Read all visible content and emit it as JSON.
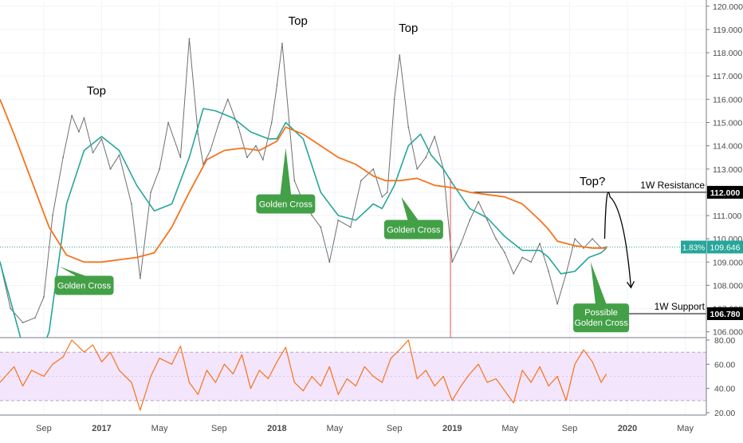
{
  "chart_data": [
    {
      "type": "line",
      "panel": "price",
      "ylim": [
        105.75,
        120.2
      ],
      "y_ticks": [
        106,
        107,
        108,
        109,
        110,
        111,
        112,
        113,
        114,
        115,
        116,
        117,
        118,
        119,
        120
      ],
      "y_tick_labels": [
        "106.000",
        "107.000",
        "108.000",
        "109.000",
        "110.000",
        "111.000",
        "112.000",
        "113.000",
        "114.000",
        "115.000",
        "116.000",
        "117.000",
        "118.000",
        "119.000",
        "120.000"
      ],
      "x_ticks": [
        {
          "label": "Sep",
          "t": 2016.67
        },
        {
          "label": "2017",
          "t": 2017.0
        },
        {
          "label": "May",
          "t": 2017.33
        },
        {
          "label": "Sep",
          "t": 2017.67
        },
        {
          "label": "2018",
          "t": 2018.0
        },
        {
          "label": "May",
          "t": 2018.33
        },
        {
          "label": "Sep",
          "t": 2018.67
        },
        {
          "label": "2019",
          "t": 2019.0
        },
        {
          "label": "May",
          "t": 2019.33
        },
        {
          "label": "Sep",
          "t": 2019.67
        },
        {
          "label": "2020",
          "t": 2020.0
        },
        {
          "label": "May",
          "t": 2020.33
        }
      ],
      "series": [
        {
          "role": "price",
          "color": "#6f6f6f",
          "t": [
            2016.42,
            2016.48,
            2016.55,
            2016.62,
            2016.67,
            2016.72,
            2016.78,
            2016.83,
            2016.87,
            2016.9,
            2016.95,
            2017.0,
            2017.05,
            2017.1,
            2017.17,
            2017.22,
            2017.28,
            2017.33,
            2017.38,
            2017.45,
            2017.5,
            2017.55,
            2017.58,
            2017.62,
            2017.67,
            2017.72,
            2017.78,
            2017.83,
            2017.88,
            2017.92,
            2017.97,
            2018.0,
            2018.03,
            2018.07,
            2018.1,
            2018.15,
            2018.2,
            2018.25,
            2018.3,
            2018.35,
            2018.42,
            2018.48,
            2018.55,
            2018.6,
            2018.63,
            2018.67,
            2018.7,
            2018.75,
            2018.8,
            2018.85,
            2018.9,
            2018.95,
            2019.0,
            2019.05,
            2019.1,
            2019.15,
            2019.2,
            2019.25,
            2019.3,
            2019.35,
            2019.4,
            2019.45,
            2019.5,
            2019.55,
            2019.6,
            2019.65,
            2019.7,
            2019.75,
            2019.8,
            2019.85,
            2019.88
          ],
          "values": [
            109.0,
            107.0,
            106.4,
            106.6,
            107.5,
            111.0,
            113.5,
            115.3,
            114.6,
            115.2,
            113.7,
            114.3,
            113.0,
            113.6,
            111.5,
            108.3,
            112.0,
            113.0,
            115.0,
            113.5,
            118.6,
            114.5,
            113.2,
            113.8,
            115.0,
            116.0,
            114.8,
            113.5,
            114.0,
            113.4,
            115.0,
            116.6,
            118.4,
            115.0,
            112.5,
            111.6,
            111.0,
            110.5,
            109.0,
            110.8,
            110.5,
            112.5,
            113.0,
            111.8,
            112.0,
            116.0,
            117.9,
            114.8,
            113.0,
            113.5,
            114.4,
            113.0,
            109.0,
            109.8,
            110.8,
            111.6,
            110.8,
            110.0,
            109.4,
            108.5,
            109.2,
            109.0,
            109.8,
            108.6,
            107.2,
            108.5,
            110.0,
            109.6,
            110.0,
            109.6,
            109.65
          ]
        },
        {
          "role": "fast moving average",
          "color": "#26a69a",
          "t": [
            2016.42,
            2016.6,
            2016.7,
            2016.8,
            2016.9,
            2017.0,
            2017.1,
            2017.2,
            2017.3,
            2017.4,
            2017.5,
            2017.58,
            2017.65,
            2017.75,
            2017.85,
            2017.95,
            2018.0,
            2018.05,
            2018.15,
            2018.25,
            2018.35,
            2018.45,
            2018.55,
            2018.6,
            2018.67,
            2018.75,
            2018.82,
            2018.88,
            2018.95,
            2019.0,
            2019.1,
            2019.2,
            2019.3,
            2019.4,
            2019.5,
            2019.55,
            2019.62,
            2019.7,
            2019.78,
            2019.85,
            2019.88
          ],
          "values": [
            109.0,
            104.0,
            106.0,
            111.5,
            113.8,
            114.4,
            113.8,
            112.3,
            111.2,
            111.5,
            113.5,
            115.6,
            115.5,
            115.2,
            114.6,
            114.3,
            114.3,
            115.0,
            114.3,
            112.0,
            111.0,
            110.8,
            111.5,
            111.3,
            112.3,
            114.0,
            114.5,
            113.6,
            113.0,
            112.4,
            111.3,
            110.9,
            110.1,
            109.5,
            109.5,
            109.2,
            108.5,
            108.6,
            109.2,
            109.4,
            109.6
          ]
        },
        {
          "role": "slow moving average",
          "color": "#f5731d",
          "t": [
            2016.42,
            2016.5,
            2016.6,
            2016.7,
            2016.8,
            2016.9,
            2017.0,
            2017.1,
            2017.2,
            2017.3,
            2017.4,
            2017.5,
            2017.6,
            2017.7,
            2017.8,
            2017.9,
            2018.0,
            2018.05,
            2018.15,
            2018.25,
            2018.35,
            2018.45,
            2018.55,
            2018.62,
            2018.7,
            2018.8,
            2018.9,
            2019.0,
            2019.1,
            2019.2,
            2019.3,
            2019.4,
            2019.5,
            2019.55,
            2019.6,
            2019.7,
            2019.8,
            2019.88
          ],
          "values": [
            116.0,
            114.5,
            112.5,
            110.5,
            109.3,
            109.0,
            109.0,
            109.1,
            109.2,
            109.4,
            110.5,
            112.0,
            113.4,
            113.8,
            113.9,
            113.8,
            114.2,
            114.8,
            114.5,
            114.0,
            113.5,
            113.2,
            112.7,
            112.5,
            112.5,
            112.6,
            112.3,
            112.2,
            112.0,
            111.9,
            111.8,
            111.5,
            110.8,
            110.4,
            109.9,
            109.7,
            109.6,
            109.6
          ]
        }
      ],
      "horizontal_levels": [
        {
          "label": "1W Resistance",
          "value": 112.0,
          "tag": "112.000"
        },
        {
          "label": "1W Support",
          "value": 106.78,
          "tag": "106.780"
        }
      ],
      "current_price": {
        "value": 109.646,
        "tag": "109.646",
        "change": "1.83%"
      },
      "annotations": [
        {
          "text": "Top",
          "t": 2016.97,
          "y": 116.2
        },
        {
          "text": "Top",
          "t": 2018.12,
          "y": 119.2
        },
        {
          "text": "Top",
          "t": 2018.75,
          "y": 118.9
        },
        {
          "text": "Top?",
          "t": 2019.8,
          "y": 112.3
        },
        {
          "text": "Golden Cross",
          "t": 2016.9,
          "y": 108.0,
          "pointer": {
            "t": 2016.76,
            "y": 108.8
          }
        },
        {
          "text": "Golden Cross",
          "t": 2018.05,
          "y": 111.5,
          "pointer": {
            "t": 2018.05,
            "y": 113.9
          }
        },
        {
          "text": "Golden Cross",
          "t": 2018.78,
          "y": 110.4,
          "pointer": {
            "t": 2018.71,
            "y": 111.8
          }
        },
        {
          "text": "Possible Golden Cross",
          "t": 2019.85,
          "y": 106.6,
          "pointer": {
            "t": 2019.79,
            "y": 109.0
          }
        }
      ],
      "projection_arrow": {
        "from": {
          "t": 2019.87,
          "y": 110.0
        },
        "peak": {
          "t": 2019.9,
          "y": 111.6
        },
        "to": {
          "t": 2020.02,
          "y": 107.9
        }
      }
    },
    {
      "type": "line",
      "panel": "RSI",
      "ylim": [
        18,
        82
      ],
      "y_ticks": [
        20,
        40,
        60,
        80
      ],
      "y_tick_labels": [
        "20.00",
        "40.00",
        "60.00",
        "80.00"
      ],
      "band": [
        30,
        70
      ],
      "color": "#f5731d",
      "t": [
        2016.42,
        2016.5,
        2016.55,
        2016.6,
        2016.67,
        2016.72,
        2016.78,
        2016.83,
        2016.9,
        2016.95,
        2017.0,
        2017.05,
        2017.1,
        2017.17,
        2017.22,
        2017.28,
        2017.33,
        2017.4,
        2017.45,
        2017.5,
        2017.55,
        2017.6,
        2017.65,
        2017.7,
        2017.75,
        2017.8,
        2017.85,
        2017.9,
        2017.95,
        2018.0,
        2018.05,
        2018.1,
        2018.15,
        2018.2,
        2018.25,
        2018.3,
        2018.35,
        2018.4,
        2018.45,
        2018.5,
        2018.55,
        2018.6,
        2018.65,
        2018.7,
        2018.75,
        2018.8,
        2018.85,
        2018.9,
        2018.95,
        2019.0,
        2019.05,
        2019.1,
        2019.15,
        2019.2,
        2019.25,
        2019.3,
        2019.35,
        2019.4,
        2019.45,
        2019.5,
        2019.55,
        2019.6,
        2019.65,
        2019.7,
        2019.75,
        2019.8,
        2019.85,
        2019.88
      ],
      "values": [
        45,
        58,
        42,
        55,
        50,
        60,
        66,
        80,
        70,
        76,
        62,
        70,
        55,
        45,
        22,
        50,
        65,
        60,
        75,
        45,
        35,
        55,
        45,
        60,
        52,
        68,
        40,
        55,
        48,
        62,
        74,
        45,
        38,
        50,
        42,
        58,
        35,
        48,
        42,
        58,
        50,
        45,
        65,
        72,
        80,
        48,
        55,
        42,
        50,
        30,
        42,
        52,
        60,
        45,
        48,
        38,
        28,
        55,
        45,
        58,
        42,
        50,
        30,
        60,
        72,
        62,
        45,
        52
      ]
    }
  ]
}
